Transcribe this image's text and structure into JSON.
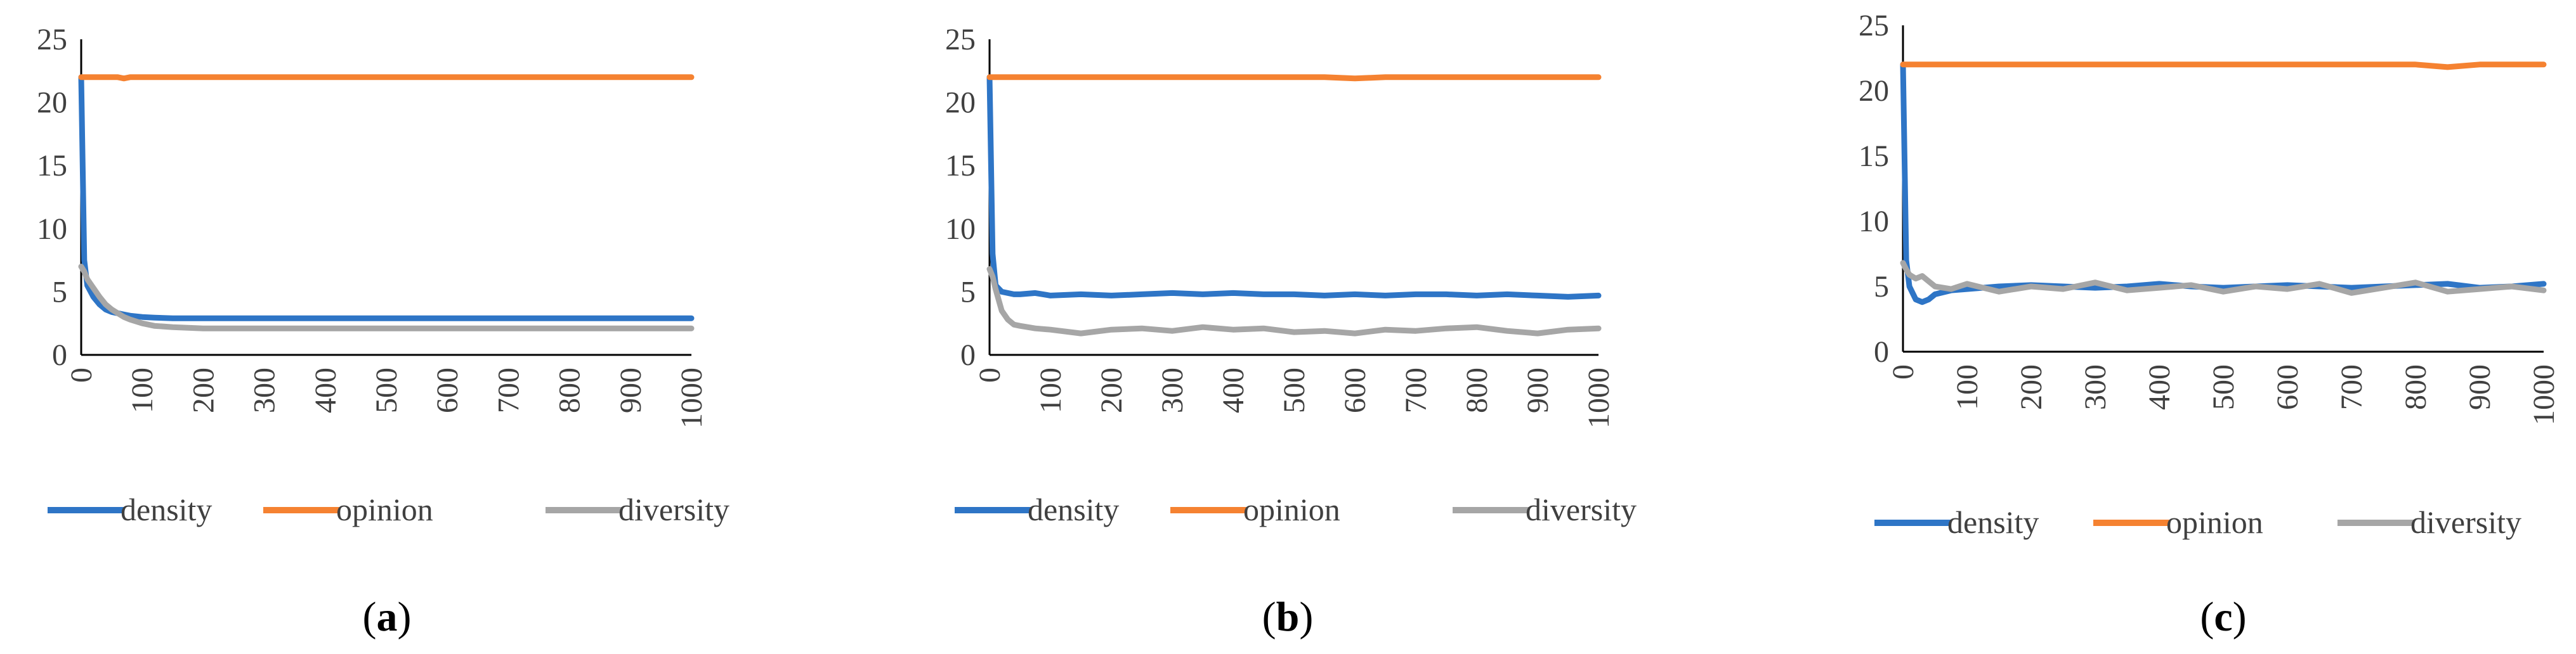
{
  "chart_data": [
    {
      "type": "line",
      "panel": "a",
      "caption": {
        "open": "(",
        "letter": "a",
        "close": ")"
      },
      "x": [
        0,
        5,
        10,
        20,
        30,
        40,
        50,
        60,
        70,
        80,
        100,
        120,
        150,
        200,
        300,
        400,
        500,
        600,
        700,
        800,
        900,
        1000
      ],
      "series": [
        {
          "name": "density",
          "color": "#2E75C6",
          "values": [
            22,
            7.5,
            5.5,
            4.6,
            4.0,
            3.6,
            3.4,
            3.3,
            3.2,
            3.1,
            3.0,
            2.95,
            2.9,
            2.9,
            2.9,
            2.9,
            2.9,
            2.9,
            2.9,
            2.9,
            2.9,
            2.9
          ]
        },
        {
          "name": "opinion",
          "color": "#F58231",
          "values": [
            22,
            22,
            22,
            22,
            22,
            22,
            22,
            22,
            21.9,
            22,
            22,
            22,
            22,
            22,
            22,
            22,
            22,
            22,
            22,
            22,
            22,
            22
          ]
        },
        {
          "name": "diversity",
          "color": "#A6A6A6",
          "values": [
            7.0,
            6.6,
            6.0,
            5.3,
            4.6,
            4.0,
            3.6,
            3.3,
            3.0,
            2.8,
            2.5,
            2.3,
            2.2,
            2.1,
            2.1,
            2.1,
            2.1,
            2.1,
            2.1,
            2.1,
            2.1,
            2.1
          ]
        }
      ],
      "yticks": [
        0,
        5,
        10,
        15,
        20,
        25
      ],
      "xticks": [
        0,
        100,
        200,
        300,
        400,
        500,
        600,
        700,
        800,
        900,
        1000
      ],
      "xlim": [
        0,
        1000
      ],
      "ylim": [
        0,
        25
      ],
      "legend_position": "bottom",
      "grid": false
    },
    {
      "type": "line",
      "panel": "b",
      "caption": {
        "open": "(",
        "letter": "b",
        "close": ")"
      },
      "x": [
        0,
        5,
        10,
        20,
        30,
        40,
        50,
        75,
        100,
        150,
        200,
        250,
        300,
        350,
        400,
        450,
        500,
        550,
        600,
        650,
        700,
        750,
        800,
        850,
        900,
        950,
        1000
      ],
      "series": [
        {
          "name": "density",
          "color": "#2E75C6",
          "values": [
            22,
            8.0,
            5.5,
            5.0,
            4.9,
            4.8,
            4.8,
            4.9,
            4.7,
            4.8,
            4.7,
            4.8,
            4.9,
            4.8,
            4.9,
            4.8,
            4.8,
            4.7,
            4.8,
            4.7,
            4.8,
            4.8,
            4.7,
            4.8,
            4.7,
            4.6,
            4.7
          ]
        },
        {
          "name": "opinion",
          "color": "#F58231",
          "values": [
            22,
            22,
            22,
            22,
            22,
            22,
            22,
            22,
            22,
            22,
            22,
            22,
            22,
            22,
            22,
            22,
            22,
            22,
            21.9,
            22,
            22,
            22,
            22,
            22,
            22,
            22,
            22
          ]
        },
        {
          "name": "diversity",
          "color": "#A6A6A6",
          "values": [
            6.8,
            6.2,
            5.2,
            3.5,
            2.8,
            2.4,
            2.3,
            2.1,
            2.0,
            1.7,
            2.0,
            2.1,
            1.9,
            2.2,
            2.0,
            2.1,
            1.8,
            1.9,
            1.7,
            2.0,
            1.9,
            2.1,
            2.2,
            1.9,
            1.7,
            2.0,
            2.1
          ]
        }
      ],
      "yticks": [
        0,
        5,
        10,
        15,
        20,
        25
      ],
      "xticks": [
        0,
        100,
        200,
        300,
        400,
        500,
        600,
        700,
        800,
        900,
        1000
      ],
      "xlim": [
        0,
        1000
      ],
      "ylim": [
        0,
        25
      ],
      "legend_position": "bottom",
      "grid": false
    },
    {
      "type": "line",
      "panel": "c",
      "caption": {
        "open": "(",
        "letter": "c",
        "close": ")"
      },
      "x": [
        0,
        5,
        10,
        20,
        30,
        40,
        50,
        75,
        100,
        150,
        200,
        250,
        300,
        350,
        400,
        450,
        500,
        550,
        600,
        650,
        700,
        750,
        800,
        850,
        900,
        950,
        1000
      ],
      "series": [
        {
          "name": "density",
          "color": "#2E75C6",
          "values": [
            22,
            7.0,
            5.0,
            4.0,
            3.8,
            4.0,
            4.4,
            4.7,
            4.8,
            5.0,
            5.1,
            5.0,
            4.9,
            5.0,
            5.2,
            5.0,
            4.9,
            5.0,
            5.1,
            5.0,
            4.9,
            5.0,
            5.1,
            5.2,
            4.9,
            5.0,
            5.2
          ]
        },
        {
          "name": "opinion",
          "color": "#F58231",
          "values": [
            22,
            22,
            22,
            22,
            22,
            22,
            22,
            22,
            22,
            22,
            22,
            22,
            22,
            22,
            22,
            22,
            22,
            22,
            22,
            22,
            22,
            22,
            22,
            21.8,
            22,
            22,
            22
          ]
        },
        {
          "name": "diversity",
          "color": "#A6A6A6",
          "values": [
            6.8,
            6.3,
            5.9,
            5.6,
            5.8,
            5.4,
            5.0,
            4.8,
            5.2,
            4.6,
            5.0,
            4.8,
            5.3,
            4.7,
            4.9,
            5.1,
            4.6,
            5.0,
            4.8,
            5.2,
            4.5,
            4.9,
            5.3,
            4.6,
            4.8,
            5.0,
            4.7
          ]
        }
      ],
      "yticks": [
        0,
        5,
        10,
        15,
        20,
        25
      ],
      "xticks": [
        0,
        100,
        200,
        300,
        400,
        500,
        600,
        700,
        800,
        900,
        1000
      ],
      "xlim": [
        0,
        1000
      ],
      "ylim": [
        0,
        25
      ],
      "legend_position": "bottom",
      "grid": false
    }
  ]
}
